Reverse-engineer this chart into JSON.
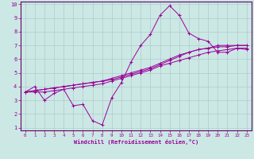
{
  "xlabel": "Windchill (Refroidissement éolien,°C)",
  "bg_color": "#cce8e4",
  "line_color": "#990099",
  "grid_color": "#aacccc",
  "spine_color": "#660066",
  "xlim": [
    -0.5,
    23.5
  ],
  "ylim": [
    0.8,
    10.2
  ],
  "xticks": [
    0,
    1,
    2,
    3,
    4,
    5,
    6,
    7,
    8,
    9,
    10,
    11,
    12,
    13,
    14,
    15,
    16,
    17,
    18,
    19,
    20,
    21,
    22,
    23
  ],
  "yticks": [
    1,
    2,
    3,
    4,
    5,
    6,
    7,
    8,
    9,
    10
  ],
  "series": [
    [
      3.6,
      4.0,
      3.0,
      3.5,
      3.8,
      2.6,
      2.7,
      1.5,
      1.2,
      3.2,
      4.3,
      5.8,
      7.0,
      7.8,
      9.2,
      9.9,
      9.2,
      7.9,
      7.5,
      7.3,
      6.5,
      6.5,
      6.8,
      6.7
    ],
    [
      3.6,
      3.6,
      3.6,
      3.7,
      3.8,
      3.9,
      4.0,
      4.1,
      4.2,
      4.4,
      4.6,
      4.8,
      5.0,
      5.2,
      5.5,
      5.7,
      5.9,
      6.1,
      6.3,
      6.5,
      6.6,
      6.7,
      6.8,
      6.8
    ],
    [
      3.6,
      3.7,
      3.8,
      3.9,
      4.0,
      4.1,
      4.2,
      4.3,
      4.4,
      4.5,
      4.7,
      4.9,
      5.1,
      5.3,
      5.6,
      5.9,
      6.2,
      6.5,
      6.7,
      6.8,
      6.9,
      6.9,
      7.0,
      7.0
    ],
    [
      3.6,
      3.7,
      3.8,
      3.9,
      4.0,
      4.1,
      4.2,
      4.3,
      4.4,
      4.6,
      4.8,
      5.0,
      5.2,
      5.4,
      5.7,
      6.0,
      6.3,
      6.5,
      6.7,
      6.8,
      7.0,
      7.0,
      7.0,
      7.0
    ]
  ]
}
